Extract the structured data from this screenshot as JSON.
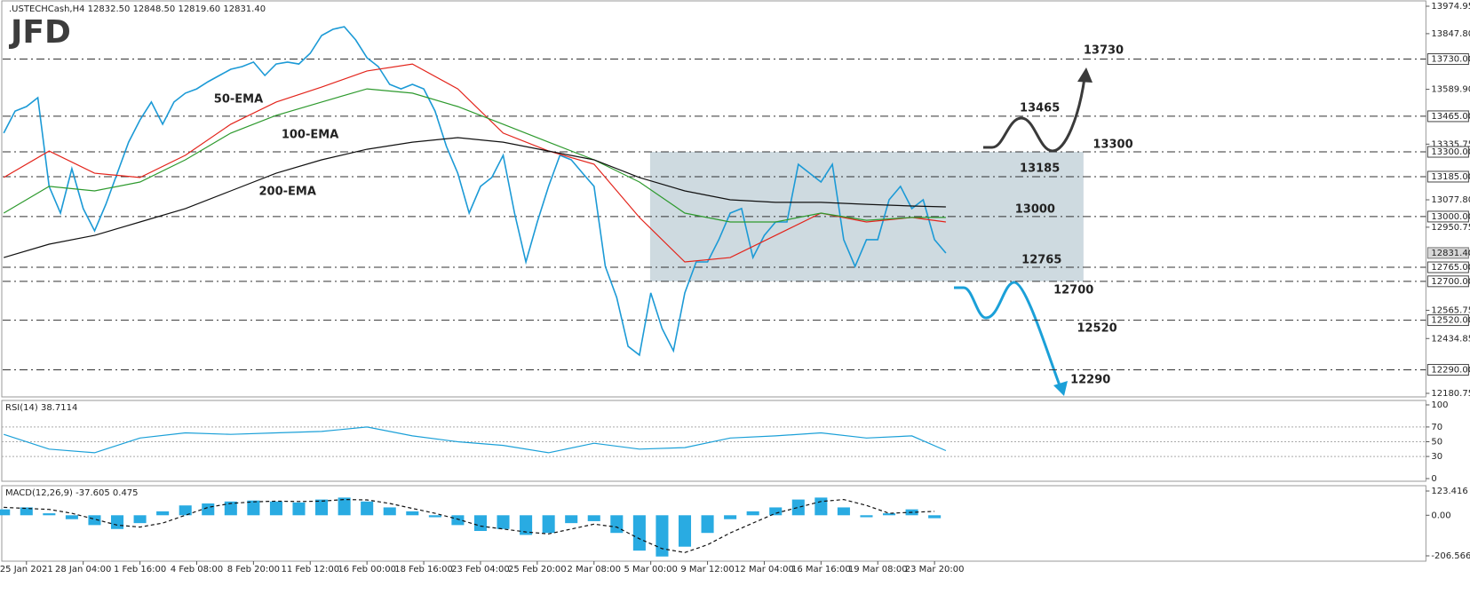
{
  "header": {
    "title": ".USTECHCash,H4 12832.50 12848.50 12819.60 12831.40",
    "logo": "JFD"
  },
  "chart_data": [
    {
      "type": "line",
      "categories": [
        null,
        null,
        "25 Jan 2021",
        null,
        null,
        null,
        null,
        "28 Jan 04:00",
        null,
        null,
        null,
        null,
        "1 Feb 16:00",
        null,
        null,
        null,
        null,
        "4 Feb 08:00",
        null,
        null,
        null,
        null,
        "8 Feb 20:00",
        null,
        null,
        null,
        null,
        "11 Feb 12:00",
        null,
        null,
        null,
        null,
        "16 Feb 00:00",
        null,
        null,
        null,
        null,
        "18 Feb 16:00",
        null,
        null,
        null,
        null,
        "23 Feb 04:00",
        null,
        null,
        null,
        null,
        "25 Feb 20:00",
        null,
        null,
        null,
        null,
        "2 Mar 08:00",
        null,
        null,
        null,
        null,
        "5 Mar 00:00",
        null,
        null,
        null,
        null,
        "9 Mar 12:00",
        null,
        null,
        null,
        null,
        "12 Mar 04:00",
        null,
        null,
        null,
        null,
        "16 Mar 16:00",
        null,
        null,
        null,
        null,
        "19 Mar 08:00",
        null,
        null,
        null,
        null,
        "23 Mar 20:00",
        null
      ],
      "ylim": [
        12164.3,
        14003.8
      ],
      "yticks": [
        13974.95,
        {
          "value": 13847.8,
          "label": "13847.80"
        },
        {
          "value": 13589.9,
          "label": "13589.90"
        },
        13335.75,
        {
          "value": 13077.8,
          "label": "13077.80"
        },
        12950.75,
        12565.75,
        12434.85,
        12180.75
      ],
      "series": [
        {
          "color": "#1c9ad6",
          "values": [
            13387,
            13489,
            13510,
            13551,
            13140,
            13016,
            13222,
            13037,
            12934,
            13057,
            13201,
            13345,
            13448,
            13531,
            13428,
            13531,
            13572,
            13592,
            13625,
            13654,
            13683,
            13695,
            13716,
            13654,
            13707,
            13716,
            13707,
            13757,
            13839,
            13868,
            13880,
            13819,
            13736,
            13695,
            13613,
            13592,
            13613,
            13592,
            13489,
            13325,
            13201,
            13016,
            13140,
            13181,
            13284,
            13016,
            12790,
            12975,
            13140,
            13284,
            13263,
            13201,
            13140,
            12769,
            12625,
            12399,
            12358,
            12646,
            12481,
            12378,
            12646,
            12790,
            12790,
            12893,
            13016,
            13037,
            12810,
            12913,
            12975,
            12975,
            13242,
            13201,
            13160,
            13242,
            12893,
            12769,
            12893,
            12893,
            13078,
            13140,
            13037,
            13078,
            12893,
            12831
          ]
        },
        {
          "name": "50-EMA",
          "color": "#e3241b",
          "x": [
            0,
            4,
            8,
            12,
            16,
            20,
            24,
            28,
            32,
            36,
            40,
            44,
            48,
            52,
            56,
            60,
            64,
            68,
            72,
            76,
            80,
            83
          ],
          "values": [
            13181,
            13304,
            13201,
            13181,
            13284,
            13428,
            13531,
            13600,
            13675,
            13707,
            13592,
            13387,
            13304,
            13243,
            12996,
            12790,
            12810,
            12913,
            13016,
            12975,
            12996,
            12975
          ]
        },
        {
          "name": "100-EMA",
          "color": "#2e9a2e",
          "x": [
            0,
            4,
            8,
            12,
            16,
            20,
            24,
            28,
            32,
            36,
            40,
            44,
            48,
            52,
            56,
            60,
            64,
            68,
            72,
            76,
            80,
            83
          ],
          "values": [
            13016,
            13140,
            13119,
            13160,
            13263,
            13387,
            13469,
            13531,
            13592,
            13572,
            13510,
            13428,
            13345,
            13263,
            13160,
            13016,
            12975,
            12975,
            13016,
            12983,
            12996,
            12996
          ]
        },
        {
          "name": "200-EMA",
          "color": "#111111",
          "x": [
            0,
            4,
            8,
            12,
            16,
            20,
            24,
            28,
            32,
            36,
            40,
            44,
            48,
            52,
            56,
            60,
            64,
            68,
            72,
            76,
            80,
            83
          ],
          "values": [
            12810,
            12872,
            12913,
            12975,
            13037,
            13119,
            13201,
            13263,
            13312,
            13345,
            13366,
            13345,
            13304,
            13263,
            13181,
            13119,
            13078,
            13066,
            13066,
            13057,
            13049,
            13045
          ]
        }
      ],
      "levels": [
        {
          "value": 13730,
          "label": "13730.00",
          "color": "#3a3a3a"
        },
        {
          "value": 13465,
          "label": "13465.00",
          "color": "#3a3a3a"
        },
        {
          "value": 13300,
          "label": "13300.00",
          "color": "#3a3a3a"
        },
        {
          "value": 13185,
          "label": "13185.00",
          "color": "#3a3a3a"
        },
        {
          "value": 13000,
          "label": "13000.00",
          "color": "#1ba0d8"
        },
        {
          "value": 12765,
          "label": "12765.00",
          "color": "#1ba0d8"
        },
        {
          "value": 12700,
          "label": "12700.00",
          "color": "#1ba0d8"
        },
        {
          "value": 12520,
          "label": "12520.00",
          "color": "#1ba0d8"
        },
        {
          "value": 12290,
          "label": "12290.00",
          "color": "#1ba0d8"
        }
      ],
      "current": {
        "value": 12831.4,
        "label": "12831.40"
      }
    },
    {
      "type": "line",
      "title": "RSI(14) 38.7114",
      "x": [
        0,
        4,
        8,
        12,
        16,
        20,
        24,
        28,
        32,
        36,
        40,
        44,
        48,
        52,
        56,
        60,
        64,
        68,
        72,
        76,
        80,
        83
      ],
      "ylim": [
        -3.6,
        107.2
      ],
      "yticks": [
        100,
        70,
        50,
        30,
        0
      ],
      "series": [
        {
          "color": "#1ba0d8",
          "values": [
            60,
            40,
            35,
            55,
            62,
            60,
            62,
            64,
            70,
            58,
            50,
            45,
            35,
            48,
            40,
            42,
            55,
            58,
            62,
            55,
            58,
            38
          ]
        }
      ]
    },
    {
      "type": "bar",
      "title": "MACD(12,26,9) -37.605 0.475",
      "x": [
        0,
        2,
        4,
        6,
        8,
        10,
        12,
        14,
        16,
        18,
        20,
        22,
        24,
        26,
        28,
        30,
        32,
        34,
        36,
        38,
        40,
        42,
        44,
        46,
        48,
        50,
        52,
        54,
        56,
        58,
        60,
        62,
        64,
        66,
        68,
        70,
        72,
        74,
        76,
        78,
        80,
        82
      ],
      "ylim": [
        -233.7,
        155
      ],
      "yticks": [
        123.416,
        {
          "value": 0,
          "label": "0.00"
        },
        -206.566
      ],
      "series": [
        {
          "type": "bar",
          "color": "#29abe2",
          "values": [
            30,
            40,
            10,
            -20,
            -50,
            -70,
            -40,
            20,
            50,
            60,
            70,
            75,
            70,
            65,
            80,
            90,
            70,
            40,
            20,
            -10,
            -50,
            -80,
            -70,
            -100,
            -90,
            -40,
            -30,
            -90,
            -180,
            -210,
            -160,
            -90,
            -20,
            20,
            40,
            80,
            90,
            40,
            -10,
            10,
            30,
            -15
          ]
        },
        {
          "type": "line",
          "line_style": "dashed",
          "color": "#111111",
          "values": [
            40,
            35,
            30,
            10,
            -20,
            -50,
            -60,
            -40,
            0,
            40,
            60,
            68,
            72,
            70,
            72,
            80,
            78,
            60,
            35,
            10,
            -20,
            -55,
            -70,
            -85,
            -95,
            -70,
            -45,
            -60,
            -120,
            -170,
            -190,
            -150,
            -90,
            -40,
            10,
            40,
            70,
            80,
            50,
            10,
            15,
            20
          ]
        }
      ]
    }
  ]
}
